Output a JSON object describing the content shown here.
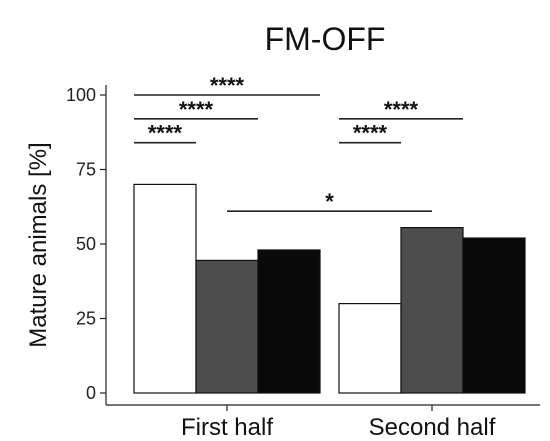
{
  "chart_data": {
    "type": "bar",
    "title": "FM-OFF",
    "xlabel": "",
    "ylabel": "Mature animals [%]",
    "ylim": [
      0,
      100
    ],
    "yticks": [
      0,
      25,
      50,
      75,
      100
    ],
    "categories": [
      "First half",
      "Second half"
    ],
    "series": [
      {
        "color": "#ffffff",
        "values": [
          70,
          30
        ]
      },
      {
        "color": "#4d4d4d",
        "values": [
          44.5,
          55.5
        ]
      },
      {
        "color": "#0a0a0a",
        "values": [
          48,
          52
        ]
      }
    ],
    "grid": false,
    "legend": "none",
    "significance": [
      {
        "category": 0,
        "from_series": 0,
        "to_series": 1,
        "label": "****",
        "y": 84
      },
      {
        "category": 0,
        "from_series": 0,
        "to_series": 2,
        "label": "****",
        "y": 92
      },
      {
        "category": 0,
        "from_series": 0,
        "to_series": 3,
        "label": "****",
        "y": 100
      },
      {
        "category": 1,
        "from_series": 0,
        "to_series": 1,
        "label": "****",
        "y": 84
      },
      {
        "category": 1,
        "from_series": 0,
        "to_series": 2,
        "label": "****",
        "y": 92
      },
      {
        "between_categories": [
          0,
          1
        ],
        "label": "*",
        "y": 61
      }
    ]
  }
}
